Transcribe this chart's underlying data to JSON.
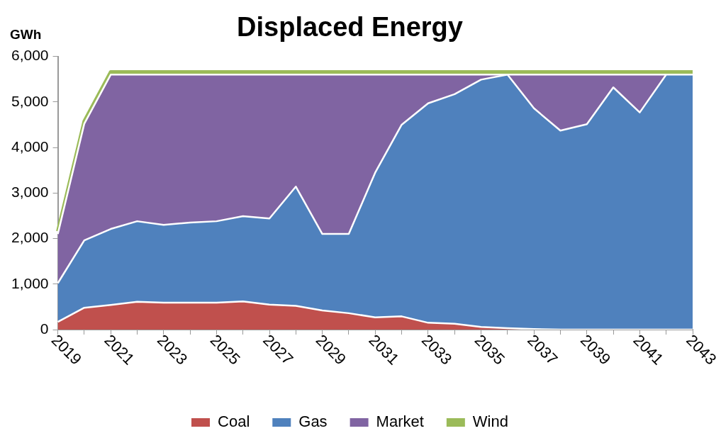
{
  "chart_data": {
    "type": "area",
    "title": "Displaced Energy",
    "ylabel": "GWh",
    "categories": [
      "2019",
      null,
      "2021",
      null,
      "2023",
      null,
      "2025",
      null,
      "2027",
      null,
      "2029",
      null,
      "2031",
      null,
      "2033",
      null,
      "2035",
      null,
      "2037",
      null,
      "2039",
      null,
      "2041",
      null,
      "2043"
    ],
    "series": [
      {
        "name": "Coal",
        "color": "#c0504d",
        "values": [
          170,
          480,
          540,
          610,
          590,
          590,
          590,
          620,
          550,
          520,
          420,
          360,
          270,
          290,
          150,
          130,
          60,
          30,
          10,
          0,
          0,
          0,
          0,
          0,
          0
        ]
      },
      {
        "name": "Gas",
        "color": "#4f81bd",
        "values": [
          850,
          1480,
          1670,
          1770,
          1710,
          1760,
          1790,
          1870,
          1890,
          2620,
          1680,
          1740,
          3180,
          4210,
          4820,
          5040,
          5430,
          5570,
          4850,
          4370,
          4510,
          5320,
          4770,
          5600,
          5600
        ]
      },
      {
        "name": "Market",
        "color": "#8064a2",
        "values": [
          1080,
          2560,
          3390,
          3220,
          3300,
          3250,
          3220,
          3110,
          3160,
          2460,
          3500,
          3500,
          2150,
          1100,
          630,
          430,
          110,
          0,
          740,
          1230,
          1090,
          280,
          830,
          0,
          0
        ]
      },
      {
        "name": "Wind",
        "color": "#9bbb59",
        "values": [
          60,
          60,
          60,
          60,
          60,
          60,
          60,
          60,
          60,
          60,
          60,
          60,
          60,
          60,
          60,
          60,
          60,
          60,
          60,
          60,
          60,
          60,
          60,
          60,
          60
        ]
      }
    ],
    "stacked": true,
    "ylim": [
      0,
      6000
    ],
    "yticks": [
      0,
      {
        "value": 1000,
        "label": "1,000"
      },
      {
        "value": 2000,
        "label": "2,000"
      },
      {
        "value": 3000,
        "label": "3,000"
      },
      {
        "value": 4000,
        "label": "4,000"
      },
      {
        "value": 5000,
        "label": "5,000"
      },
      {
        "value": 6000,
        "label": "6,000"
      }
    ],
    "legend": "bottom",
    "grid": false
  }
}
